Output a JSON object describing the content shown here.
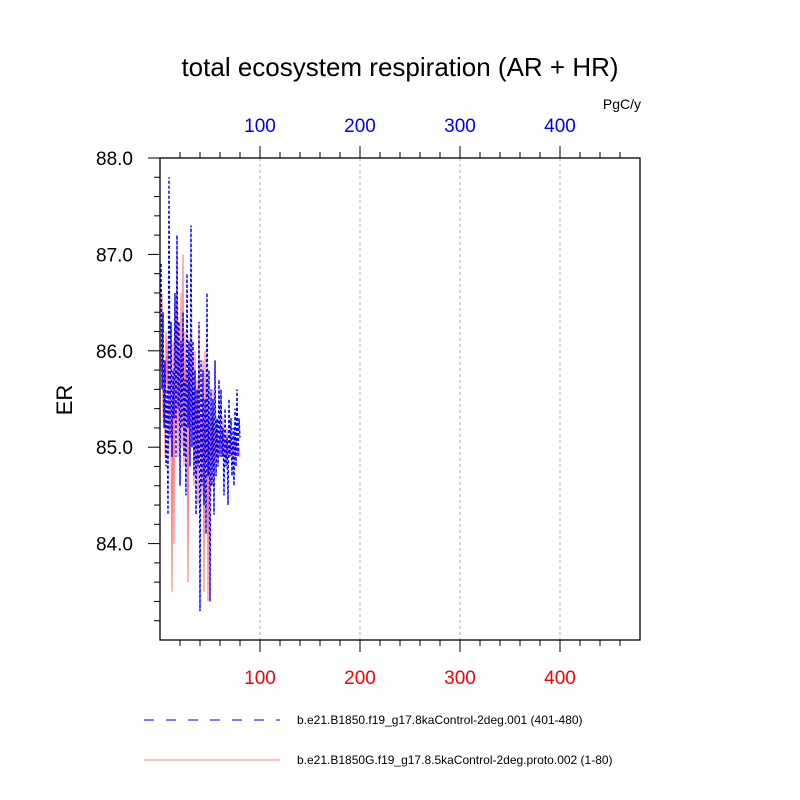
{
  "chart_data": {
    "type": "line",
    "title": "total ecosystem respiration (AR + HR)",
    "units": "PgC/y",
    "ylabel": "ER",
    "xlabel": "",
    "xlim": [
      0,
      480
    ],
    "ylim": [
      83.0,
      88.0
    ],
    "yticks": [
      "88.0",
      "87.0",
      "86.0",
      "85.0",
      "84.0"
    ],
    "ytick_values": [
      88.0,
      87.0,
      86.0,
      85.0,
      84.0
    ],
    "xticks_top": [
      "100",
      "200",
      "300",
      "400"
    ],
    "xticks_bottom": [
      "100",
      "200",
      "300",
      "400"
    ],
    "xtick_values": [
      100,
      200,
      300,
      400
    ],
    "grid": "vertical dashed at x ticks",
    "top_axis_color": "#0000ff",
    "bottom_axis_color": "#ff0000",
    "series": [
      {
        "name": "b.e21.B1850.f19_g17.8kaControl-2deg.001 (401-480)",
        "color": "#0000ff",
        "style": "dashed",
        "x": [
          1,
          2,
          3,
          4,
          5,
          6,
          7,
          8,
          9,
          10,
          11,
          12,
          13,
          14,
          15,
          16,
          17,
          18,
          19,
          20,
          21,
          22,
          23,
          24,
          25,
          26,
          27,
          28,
          29,
          30,
          31,
          32,
          33,
          34,
          35,
          36,
          37,
          38,
          39,
          40,
          41,
          42,
          43,
          44,
          45,
          46,
          47,
          48,
          49,
          50,
          51,
          52,
          53,
          54,
          55,
          56,
          57,
          58,
          59,
          60,
          61,
          62,
          63,
          64,
          65,
          66,
          67,
          68,
          69,
          70,
          71,
          72,
          73,
          74,
          75,
          76,
          77,
          78,
          79,
          80
        ],
        "values": [
          86.9,
          85.6,
          86.4,
          85.2,
          85.9,
          84.8,
          85.6,
          84.3,
          87.8,
          85.1,
          86.3,
          84.9,
          85.8,
          85.3,
          86.6,
          84.9,
          87.2,
          85.4,
          86.3,
          84.6,
          86.1,
          85.2,
          86.4,
          84.9,
          85.7,
          84.5,
          86.8,
          85.2,
          86.1,
          84.8,
          87.3,
          85.0,
          86.1,
          84.7,
          85.8,
          84.3,
          85.6,
          84.8,
          86.3,
          83.3,
          85.9,
          84.6,
          85.8,
          84.4,
          85.5,
          84.1,
          86.6,
          84.7,
          85.8,
          83.4,
          85.6,
          84.6,
          85.5,
          84.3,
          85.9,
          84.7,
          85.3,
          84.8,
          85.7,
          84.9,
          85.6,
          84.9,
          85.2,
          84.5,
          85.4,
          84.8,
          85.1,
          84.4,
          85.5,
          84.9,
          85.3,
          84.7,
          85.2,
          84.6,
          85.4,
          84.8,
          85.6,
          84.9,
          85.3,
          85.1
        ]
      },
      {
        "name": "b.e21.B1850G.f19_g17.8.5kaControl-2deg.proto.002 (1-80)",
        "color": "#ff8080",
        "style": "solid",
        "x": [
          1,
          2,
          3,
          4,
          5,
          6,
          7,
          8,
          9,
          10,
          11,
          12,
          13,
          14,
          15,
          16,
          17,
          18,
          19,
          20,
          21,
          22,
          23,
          24,
          25,
          26,
          27,
          28,
          29,
          30,
          31,
          32,
          33,
          34,
          35,
          36,
          37,
          38,
          39,
          40,
          41,
          42,
          43,
          44,
          45,
          46,
          47,
          48,
          49,
          50,
          51,
          52,
          53,
          54,
          55,
          56,
          57,
          58,
          59,
          60,
          61,
          62,
          63,
          64,
          65,
          66,
          67,
          68,
          69,
          70,
          71,
          72,
          73,
          74,
          75,
          76,
          77,
          78,
          79,
          80
        ],
        "values": [
          85.8,
          86.6,
          85.3,
          85.9,
          84.9,
          86.2,
          85.6,
          86.1,
          85.0,
          85.7,
          85.2,
          83.5,
          86.1,
          84.0,
          86.5,
          85.2,
          87.0,
          84.9,
          86.0,
          85.3,
          86.6,
          85.0,
          87.0,
          84.8,
          86.2,
          85.3,
          85.8,
          83.6,
          85.7,
          84.9,
          86.2,
          85.0,
          85.9,
          84.6,
          86.0,
          84.7,
          85.7,
          84.4,
          86.3,
          84.9,
          85.3,
          84.5,
          85.9,
          83.5,
          86.0,
          84.8,
          85.7,
          83.4,
          85.3,
          84.5,
          85.5,
          84.8,
          85.6,
          84.6,
          85.2,
          84.9,
          85.3,
          84.8,
          85.1,
          85.0,
          85.2,
          84.9,
          85.3,
          84.9,
          85.1,
          84.8,
          85.2,
          84.9,
          85.0,
          84.9,
          85.1,
          85.0,
          84.9,
          85.2,
          84.9,
          85.1,
          85.0,
          84.9,
          85.0,
          84.9
        ]
      }
    ]
  }
}
